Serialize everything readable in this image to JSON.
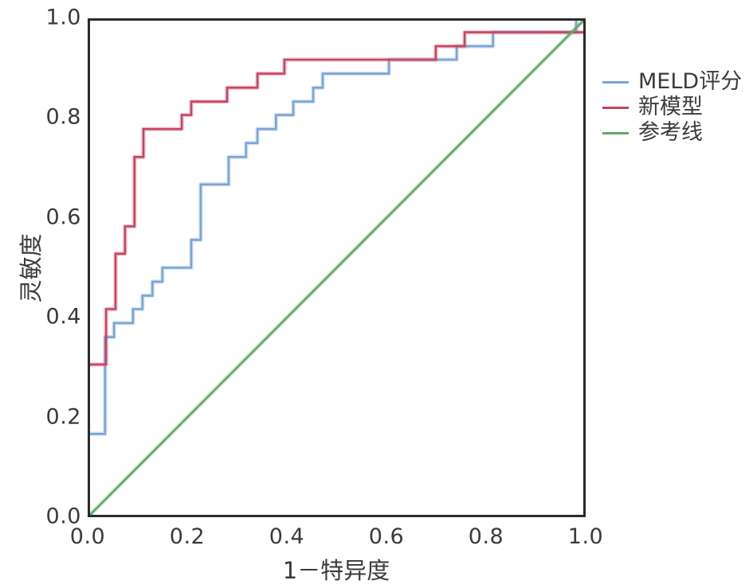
{
  "figure": {
    "background": "#ffffff",
    "border_color": "#2b2b2b",
    "text_color": "#3a3a3a"
  },
  "chart_data": {
    "type": "line",
    "chart_kind": "roc-curve",
    "title": "",
    "xlabel": "1－特异度",
    "ylabel": "灵敏度",
    "xlim": [
      0.0,
      1.0
    ],
    "ylim": [
      0.0,
      1.0
    ],
    "grid": false,
    "legend_position": "right-outside",
    "x_ticks": [
      {
        "label": "0.0",
        "v": 0.0
      },
      {
        "label": "0.2",
        "v": 0.2
      },
      {
        "label": "0.4",
        "v": 0.4
      },
      {
        "label": "0.6",
        "v": 0.6
      },
      {
        "label": "0.8",
        "v": 0.8
      },
      {
        "label": "1.0",
        "v": 1.0
      }
    ],
    "y_ticks": [
      {
        "label": "0.0",
        "v": 0.0
      },
      {
        "label": "0.2",
        "v": 0.2
      },
      {
        "label": "0.4",
        "v": 0.4
      },
      {
        "label": "0.6",
        "v": 0.6
      },
      {
        "label": "0.8",
        "v": 0.8
      },
      {
        "label": "1.0",
        "v": 1.0
      }
    ],
    "series": [
      {
        "name": "MELD评分",
        "color": "#7AA4D4",
        "style": "step",
        "points": [
          [
            0,
            0
          ],
          [
            0,
            0.167
          ],
          [
            0.035,
            0.167
          ],
          [
            0.035,
            0.361
          ],
          [
            0.053,
            0.361
          ],
          [
            0.053,
            0.389
          ],
          [
            0.091,
            0.389
          ],
          [
            0.091,
            0.417
          ],
          [
            0.11,
            0.417
          ],
          [
            0.11,
            0.444
          ],
          [
            0.13,
            0.444
          ],
          [
            0.13,
            0.472
          ],
          [
            0.15,
            0.472
          ],
          [
            0.15,
            0.5
          ],
          [
            0.208,
            0.5
          ],
          [
            0.208,
            0.556
          ],
          [
            0.227,
            0.556
          ],
          [
            0.227,
            0.667
          ],
          [
            0.283,
            0.667
          ],
          [
            0.283,
            0.722
          ],
          [
            0.318,
            0.722
          ],
          [
            0.318,
            0.75
          ],
          [
            0.341,
            0.75
          ],
          [
            0.341,
            0.778
          ],
          [
            0.378,
            0.778
          ],
          [
            0.378,
            0.806
          ],
          [
            0.413,
            0.806
          ],
          [
            0.413,
            0.833
          ],
          [
            0.453,
            0.833
          ],
          [
            0.453,
            0.861
          ],
          [
            0.472,
            0.861
          ],
          [
            0.472,
            0.889
          ],
          [
            0.605,
            0.889
          ],
          [
            0.605,
            0.917
          ],
          [
            0.741,
            0.917
          ],
          [
            0.741,
            0.944
          ],
          [
            0.814,
            0.944
          ],
          [
            0.814,
            0.972
          ],
          [
            0.981,
            0.972
          ],
          [
            0.981,
            1.0
          ],
          [
            1,
            1
          ]
        ]
      },
      {
        "name": "新模型",
        "color": "#C8445F",
        "style": "step",
        "points": [
          [
            0,
            0
          ],
          [
            0,
            0.306
          ],
          [
            0.037,
            0.306
          ],
          [
            0.037,
            0.417
          ],
          [
            0.056,
            0.417
          ],
          [
            0.056,
            0.528
          ],
          [
            0.075,
            0.528
          ],
          [
            0.075,
            0.583
          ],
          [
            0.094,
            0.583
          ],
          [
            0.094,
            0.722
          ],
          [
            0.112,
            0.722
          ],
          [
            0.112,
            0.778
          ],
          [
            0.189,
            0.778
          ],
          [
            0.189,
            0.806
          ],
          [
            0.208,
            0.806
          ],
          [
            0.208,
            0.833
          ],
          [
            0.28,
            0.833
          ],
          [
            0.28,
            0.861
          ],
          [
            0.341,
            0.861
          ],
          [
            0.341,
            0.889
          ],
          [
            0.395,
            0.889
          ],
          [
            0.395,
            0.917
          ],
          [
            0.699,
            0.917
          ],
          [
            0.699,
            0.944
          ],
          [
            0.757,
            0.944
          ],
          [
            0.757,
            0.972
          ],
          [
            1,
            0.972
          ],
          [
            1,
            1
          ]
        ]
      },
      {
        "name": "参考线",
        "color": "#61A86C",
        "style": "diagonal",
        "points": [
          [
            0,
            0
          ],
          [
            1,
            1
          ]
        ]
      }
    ]
  }
}
